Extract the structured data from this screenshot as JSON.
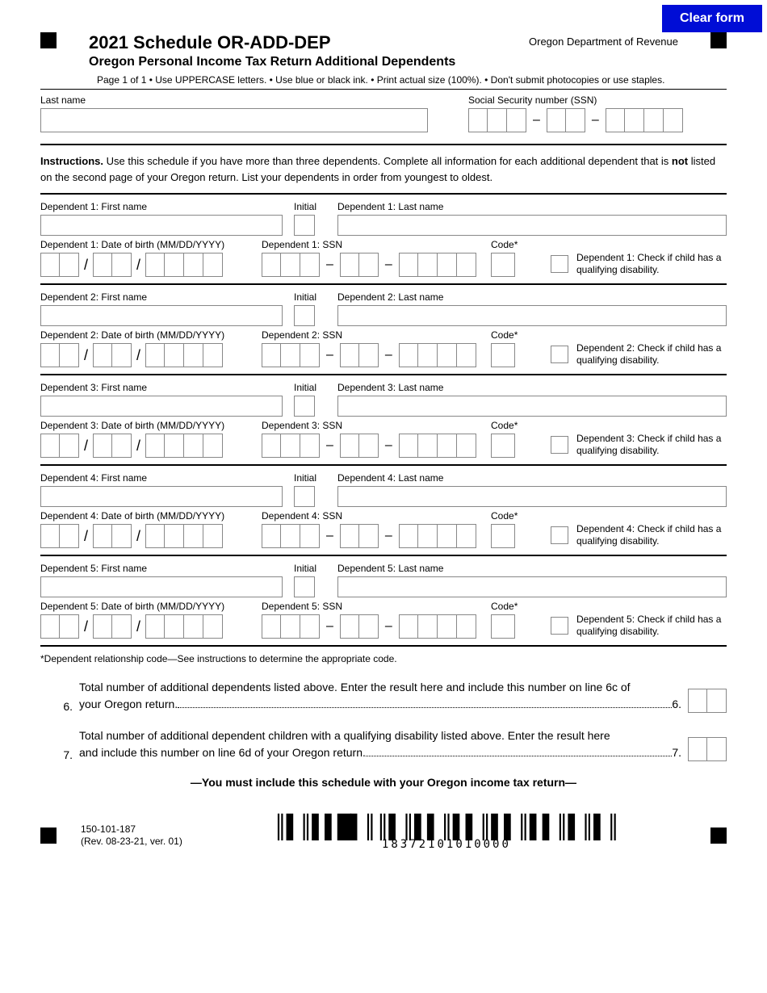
{
  "clear_button": "Clear form",
  "header": {
    "title": "2021 Schedule OR-ADD-DEP",
    "subtitle": "Oregon Personal Income Tax Return Additional Dependents",
    "dept": "Oregon Department of Revenue"
  },
  "page_info": "Page 1 of 1       • Use UPPERCASE letters.  • Use blue or black ink.  • Print actual size (100%).  • Don't submit photocopies or use staples.",
  "top": {
    "last_name_label": "Last name",
    "ssn_label": "Social Security number (SSN)"
  },
  "instructions_bold": "Instructions.",
  "instructions_p1": " Use this schedule if you have more than three dependents. Complete all information for each additional dependent that is ",
  "instructions_not": "not",
  "instructions_p2": " listed on the second page of your Oregon return. List your dependents in order from youngest to oldest.",
  "dep_labels": {
    "fn": ": First name",
    "init": "Initial",
    "ln": ": Last name",
    "dob": ": Date of birth (MM/DD/YYYY)",
    "ssn": ": SSN",
    "code": "Code*",
    "chk": ": Check if child has a qualifying disability."
  },
  "dependents": [
    "Dependent 1",
    "Dependent 2",
    "Dependent 3",
    "Dependent 4",
    "Dependent 5"
  ],
  "footnote": "*Dependent relationship code—See instructions to determine the appropriate code.",
  "totals": {
    "n6": "6.",
    "t6a": "Total number of additional dependents listed above. Enter the result here and include this number on line 6c of",
    "t6b": "your Oregon return.",
    "e6": " 6.",
    "n7": "7.",
    "t7a": "Total number of additional dependent children with a qualifying disability listed above. Enter the result here",
    "t7b": "and include this number on line 6d of your Oregon return. ",
    "e7": " 7."
  },
  "must_include": "—You must include this schedule with your Oregon income tax return—",
  "footer": {
    "form_num": "150-101-187",
    "rev": "(Rev. 08-23-21, ver. 01)",
    "barcode_num": "18372101010000"
  }
}
